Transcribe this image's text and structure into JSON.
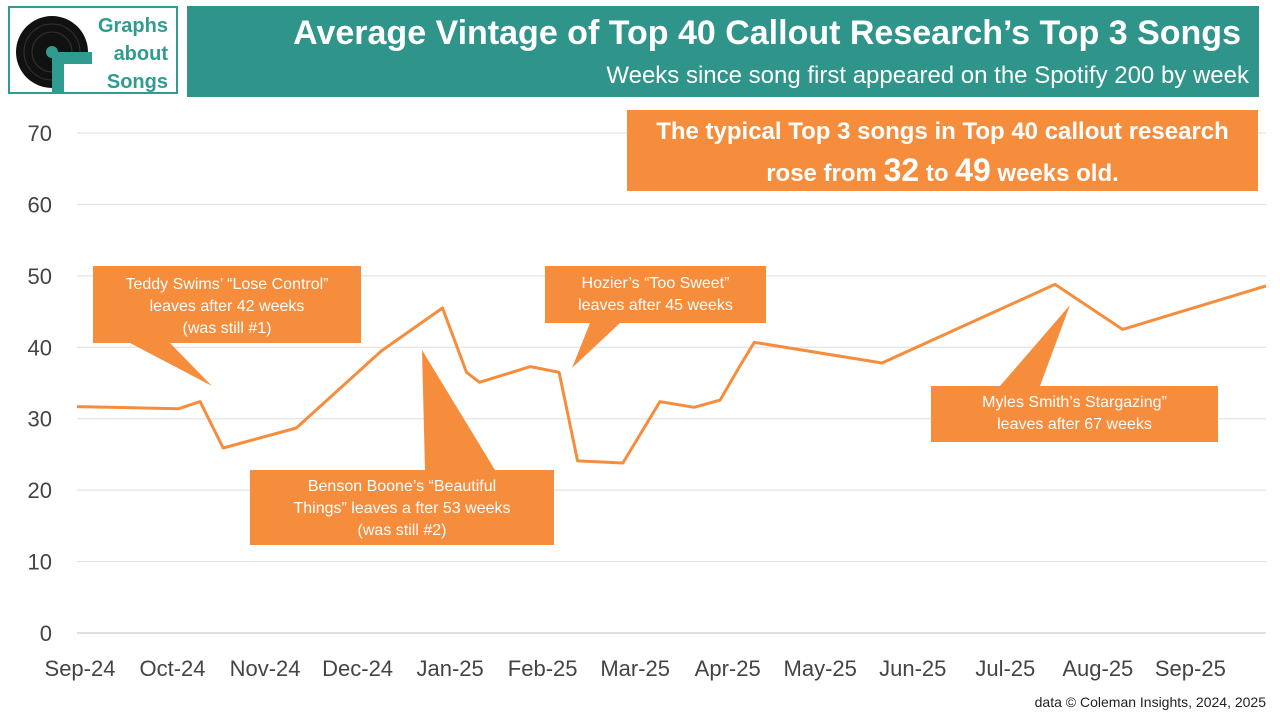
{
  "logo": {
    "line1": "Graphs",
    "line2": "about",
    "line3": "Songs",
    "icon": "vinyl-record-icon",
    "color": "#2f9c8f"
  },
  "header": {
    "title": "Average Vintage of Top 40 Callout Research’s Top 3 Songs",
    "subtitle": "Weeks since song first appeared on the Spotify 200 by week",
    "color": "#2f9489"
  },
  "summary": {
    "text1": "The typical Top 3 songs in Top 40 callout research",
    "rose_from": "rose from",
    "start": "32",
    "to": "to",
    "end": "49",
    "suffix": "weeks old."
  },
  "annotations": {
    "teddy": {
      "line1": "Teddy Swims’ “Lose Control”",
      "line2": "leaves after 42 weeks",
      "line3": "(was still #1)"
    },
    "benson": {
      "line1": "Benson Boone’s “Beautiful",
      "line2": "Things” leaves a fter 53 weeks",
      "line3": "(was still #2)"
    },
    "hozier": {
      "line1": "Hozier’s “Too Sweet”",
      "line2": "leaves after 45 weeks"
    },
    "myles": {
      "line1": "Myles Smith’s Stargazing”",
      "line2": "leaves after 67 weeks"
    },
    "color": "#f68d3d"
  },
  "source": "data © Coleman Insights, 2024, 2025",
  "chart_data": {
    "type": "line",
    "title": "Average Vintage of Top 40 Callout Research’s Top 3 Songs",
    "ylabel": "Weeks since song first appeared on the Spotify 200",
    "ylim": [
      0,
      70
    ],
    "yticks": [
      0,
      10,
      20,
      30,
      40,
      50,
      60,
      70
    ],
    "x_ticks": [
      "Sep-24",
      "Oct-24",
      "Nov-24",
      "Dec-24",
      "Jan-25",
      "Feb-25",
      "Mar-25",
      "Apr-25",
      "May-25",
      "Jun-25",
      "Jul-25",
      "Aug-25",
      "Sep-25"
    ],
    "x_range_months": [
      0,
      12.85
    ],
    "series": [
      {
        "name": "Average vintage (weeks)",
        "color": "#f68d3d",
        "x": [
          0,
          1.1,
          1.33,
          1.58,
          2.37,
          3.29,
          3.95,
          4.21,
          4.35,
          4.9,
          5.21,
          5.41,
          5.9,
          6.3,
          6.67,
          6.95,
          7.17,
          7.32,
          8.7,
          10.57,
          11.3,
          12.85
        ],
        "values": [
          31.7,
          31.4,
          32.4,
          25.9,
          28.7,
          39.5,
          45.5,
          36.5,
          35.1,
          37.3,
          36.5,
          24.1,
          23.8,
          32.4,
          31.6,
          32.6,
          37.5,
          40.7,
          37.8,
          48.8,
          42.5,
          48.6
        ]
      }
    ]
  }
}
